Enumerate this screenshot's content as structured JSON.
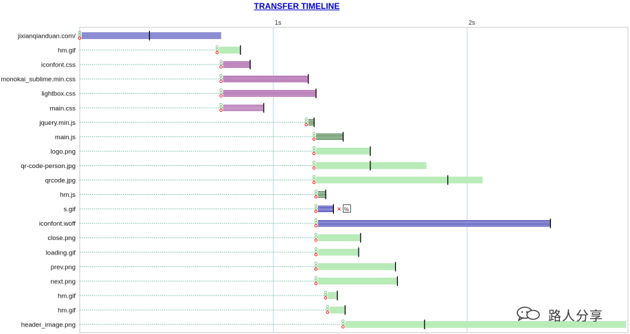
{
  "chart_data": {
    "type": "bar",
    "title": "TRANSFER TIMELINE",
    "xlabel": "",
    "ylabel": "",
    "x_unit": "s",
    "xlim": [
      0,
      2.83
    ],
    "ticks": [
      {
        "value": 1,
        "label": "1s"
      },
      {
        "value": 2,
        "label": "2s"
      }
    ],
    "grid": true,
    "colors": {
      "blue": "#1c1ca8",
      "purple": "#8e2c8e",
      "green": "#2e6e2e",
      "light_green": "#c3f1c3",
      "marker": "#000000",
      "error": "#ff0000"
    },
    "series": [
      {
        "name": "jixianqianduan.com/",
        "wait_start": 0.0,
        "start": 0.01,
        "end": 0.73,
        "marker": 0.36,
        "color": "blue",
        "light": false,
        "icons": []
      },
      {
        "name": "hm.gif",
        "wait_start": 0.0,
        "start": 0.72,
        "end": 0.83,
        "marker": 0.83,
        "color": "light_green",
        "light": true,
        "icons": []
      },
      {
        "name": "iconfont.css",
        "wait_start": 0.0,
        "start": 0.74,
        "end": 0.88,
        "marker": 0.88,
        "color": "purple",
        "light": false,
        "icons": []
      },
      {
        "name": "monokai_sublime.min.css",
        "wait_start": 0.0,
        "start": 0.74,
        "end": 1.18,
        "marker": 1.18,
        "color": "purple",
        "light": false,
        "icons": []
      },
      {
        "name": "lightbox.css",
        "wait_start": 0.0,
        "start": 0.74,
        "end": 1.22,
        "marker": 1.22,
        "color": "purple",
        "light": false,
        "icons": []
      },
      {
        "name": "main.css",
        "wait_start": 0.0,
        "start": 0.74,
        "end": 0.95,
        "marker": 0.95,
        "color": "purple",
        "light": false,
        "icons": []
      },
      {
        "name": "jquery.min.js",
        "wait_start": 0.0,
        "start": 1.18,
        "end": 1.21,
        "marker": 1.21,
        "color": "green",
        "light": false,
        "icons": []
      },
      {
        "name": "main.js",
        "wait_start": 0.0,
        "start": 1.22,
        "end": 1.36,
        "marker": 1.36,
        "color": "green",
        "light": false,
        "icons": []
      },
      {
        "name": "logo.png",
        "wait_start": 0.0,
        "start": 1.22,
        "end": 1.5,
        "marker": 1.5,
        "color": "light_green",
        "light": true,
        "icons": []
      },
      {
        "name": "qr-code-person.jpg",
        "wait_start": 0.0,
        "start": 1.22,
        "end": 1.79,
        "marker": 1.5,
        "color": "light_green",
        "light": true,
        "icons": []
      },
      {
        "name": "qrcode.jpg",
        "wait_start": 0.0,
        "start": 1.22,
        "end": 2.08,
        "marker": 1.9,
        "color": "light_green",
        "light": true,
        "icons": []
      },
      {
        "name": "hm.js",
        "wait_start": 0.0,
        "start": 1.23,
        "end": 1.27,
        "marker": 1.27,
        "color": "green",
        "light": false,
        "icons": []
      },
      {
        "name": "s.gif",
        "wait_start": 0.0,
        "start": 1.23,
        "end": 1.31,
        "marker": 1.31,
        "color": "blue",
        "light": false,
        "icons": [
          "×",
          "%"
        ]
      },
      {
        "name": "iconfont.woff",
        "wait_start": 0.0,
        "start": 1.23,
        "end": 2.43,
        "marker": 2.43,
        "color": "blue",
        "light": false,
        "icons": []
      },
      {
        "name": "close.png",
        "wait_start": 0.0,
        "start": 1.23,
        "end": 1.45,
        "marker": 1.45,
        "color": "light_green",
        "light": true,
        "icons": []
      },
      {
        "name": "loading.gif",
        "wait_start": 0.0,
        "start": 1.23,
        "end": 1.44,
        "marker": 1.44,
        "color": "light_green",
        "light": true,
        "icons": []
      },
      {
        "name": "prev.png",
        "wait_start": 0.0,
        "start": 1.23,
        "end": 1.63,
        "marker": 1.63,
        "color": "light_green",
        "light": true,
        "icons": []
      },
      {
        "name": "next.png",
        "wait_start": 0.0,
        "start": 1.23,
        "end": 1.64,
        "marker": 1.64,
        "color": "light_green",
        "light": true,
        "icons": []
      },
      {
        "name": "hm.gif",
        "wait_start": 0.0,
        "start": 1.28,
        "end": 1.33,
        "marker": 1.33,
        "color": "light_green",
        "light": true,
        "icons": []
      },
      {
        "name": "hm.gif",
        "wait_start": 0.0,
        "start": 1.29,
        "end": 1.37,
        "marker": 1.37,
        "color": "light_green",
        "light": true,
        "icons": []
      },
      {
        "name": "header_image.png",
        "wait_start": 0.0,
        "start": 1.37,
        "end": 2.82,
        "marker": 1.78,
        "color": "light_green",
        "light": true,
        "icons": []
      }
    ]
  },
  "watermark": {
    "text": "路人分享",
    "icon": "chat-bubbles-icon"
  }
}
